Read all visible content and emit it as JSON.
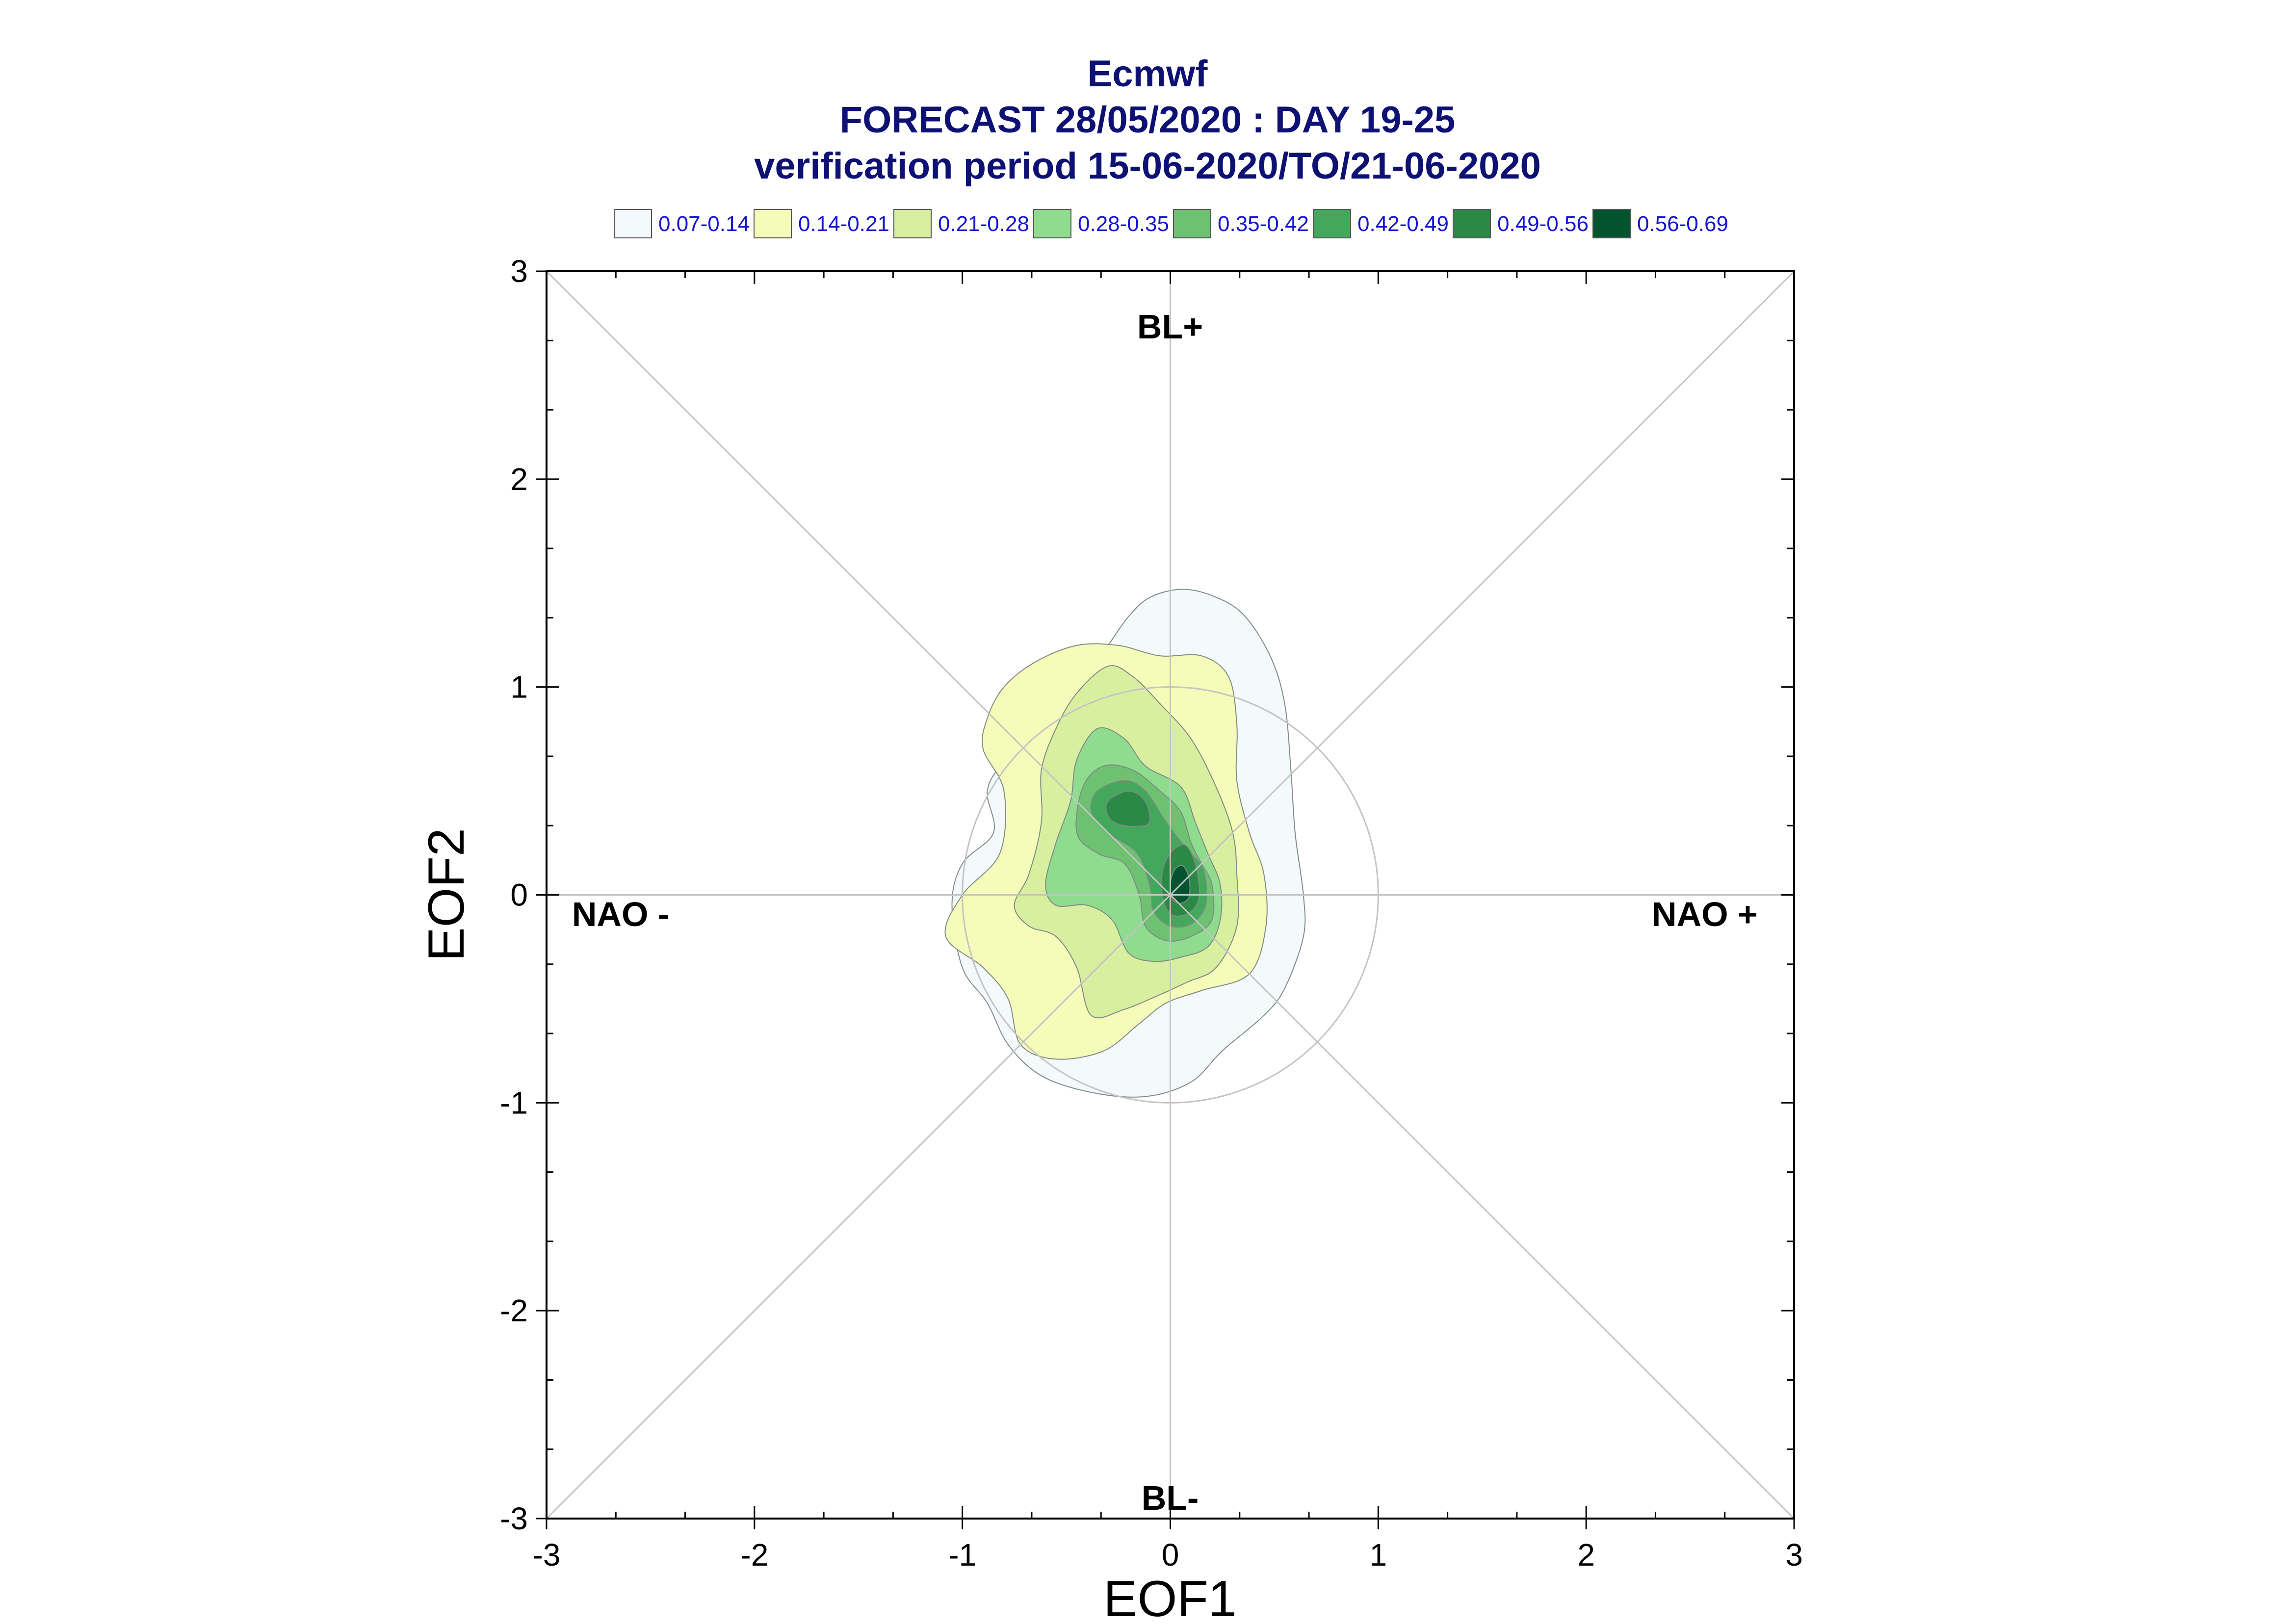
{
  "titles": {
    "line1": "Ecmwf",
    "line2": "FORECAST 28/05/2020 : DAY 19-25",
    "line3": "verification period 15-06-2020/TO/21-06-2020"
  },
  "legend": [
    {
      "label": "0.07-0.14",
      "color": "#f4f9fc"
    },
    {
      "label": "0.14-0.21",
      "color": "#f5fbb9"
    },
    {
      "label": "0.21-0.28",
      "color": "#d8efa0"
    },
    {
      "label": "0.28-0.35",
      "color": "#8fdc8e"
    },
    {
      "label": "0.35-0.42",
      "color": "#6ec171"
    },
    {
      "label": "0.42-0.49",
      "color": "#44a85c"
    },
    {
      "label": "0.49-0.56",
      "color": "#2a8a45"
    },
    {
      "label": "0.56-0.69",
      "color": "#02542f"
    }
  ],
  "chart_data": {
    "type": "contour",
    "xlabel": "EOF1",
    "ylabel": "EOF2",
    "xlim": [
      -3,
      3
    ],
    "ylim": [
      -3,
      3
    ],
    "xticks": [
      "-3",
      "-2",
      "-1",
      "0",
      "1",
      "2",
      "3"
    ],
    "yticks": [
      "3",
      "2",
      "1",
      "0",
      "-1",
      "-2",
      "-3"
    ],
    "reference_circle_radius": 1,
    "regime_labels": {
      "top": "BL+",
      "bottom": "BL-",
      "left": "NAO -",
      "right": "NAO +"
    },
    "contour_levels": [
      {
        "range": "0.07-0.14",
        "polygons": [
          [
            [
              -0.85,
              0.3
            ],
            [
              -0.88,
              0.5
            ],
            [
              -0.8,
              0.63
            ],
            [
              -0.62,
              0.72
            ],
            [
              -0.48,
              0.95
            ],
            [
              -0.3,
              1.2
            ],
            [
              -0.2,
              1.34
            ],
            [
              -0.1,
              1.43
            ],
            [
              0.05,
              1.47
            ],
            [
              0.2,
              1.44
            ],
            [
              0.35,
              1.35
            ],
            [
              0.48,
              1.15
            ],
            [
              0.55,
              0.92
            ],
            [
              0.58,
              0.6
            ],
            [
              0.6,
              0.3
            ],
            [
              0.64,
              0.0
            ],
            [
              0.64,
              -0.2
            ],
            [
              0.55,
              -0.45
            ],
            [
              0.45,
              -0.58
            ],
            [
              0.25,
              -0.75
            ],
            [
              0.1,
              -0.9
            ],
            [
              -0.12,
              -0.97
            ],
            [
              -0.38,
              -0.95
            ],
            [
              -0.62,
              -0.87
            ],
            [
              -0.78,
              -0.72
            ],
            [
              -0.88,
              -0.52
            ],
            [
              -1.0,
              -0.35
            ],
            [
              -1.05,
              -0.05
            ],
            [
              -1.0,
              0.15
            ]
          ]
        ]
      },
      {
        "range": "0.14-0.21",
        "polygons": [
          [
            [
              -0.88,
              0.85
            ],
            [
              -0.8,
              1.0
            ],
            [
              -0.65,
              1.12
            ],
            [
              -0.45,
              1.2
            ],
            [
              -0.25,
              1.2
            ],
            [
              -0.05,
              1.15
            ],
            [
              0.15,
              1.15
            ],
            [
              0.28,
              1.05
            ],
            [
              0.32,
              0.82
            ],
            [
              0.32,
              0.55
            ],
            [
              0.38,
              0.3
            ],
            [
              0.45,
              0.1
            ],
            [
              0.46,
              -0.15
            ],
            [
              0.38,
              -0.38
            ],
            [
              0.15,
              -0.46
            ],
            [
              -0.02,
              -0.52
            ],
            [
              -0.15,
              -0.62
            ],
            [
              -0.32,
              -0.75
            ],
            [
              -0.55,
              -0.79
            ],
            [
              -0.72,
              -0.72
            ],
            [
              -0.78,
              -0.5
            ],
            [
              -0.9,
              -0.35
            ],
            [
              -1.08,
              -0.2
            ],
            [
              -1.0,
              -0.0
            ],
            [
              -0.82,
              0.2
            ],
            [
              -0.8,
              0.5
            ],
            [
              -0.9,
              0.7
            ]
          ]
        ]
      },
      {
        "range": "0.21-0.28",
        "polygons": [
          [
            [
              -0.55,
              0.8
            ],
            [
              -0.45,
              0.97
            ],
            [
              -0.3,
              1.1
            ],
            [
              -0.18,
              1.05
            ],
            [
              -0.05,
              0.92
            ],
            [
              0.1,
              0.75
            ],
            [
              0.22,
              0.52
            ],
            [
              0.3,
              0.3
            ],
            [
              0.32,
              0.1
            ],
            [
              0.32,
              -0.15
            ],
            [
              0.22,
              -0.35
            ],
            [
              0.08,
              -0.42
            ],
            [
              -0.05,
              -0.48
            ],
            [
              -0.22,
              -0.55
            ],
            [
              -0.38,
              -0.58
            ],
            [
              -0.45,
              -0.35
            ],
            [
              -0.55,
              -0.2
            ],
            [
              -0.68,
              -0.15
            ],
            [
              -0.75,
              -0.05
            ],
            [
              -0.68,
              0.1
            ],
            [
              -0.62,
              0.35
            ],
            [
              -0.62,
              0.6
            ]
          ]
        ]
      },
      {
        "range": "0.28-0.35",
        "polygons": [
          [
            [
              -0.45,
              0.65
            ],
            [
              -0.35,
              0.8
            ],
            [
              -0.22,
              0.75
            ],
            [
              -0.12,
              0.62
            ],
            [
              0.05,
              0.52
            ],
            [
              0.12,
              0.35
            ],
            [
              0.18,
              0.2
            ],
            [
              0.24,
              0.05
            ],
            [
              0.24,
              -0.12
            ],
            [
              0.18,
              -0.25
            ],
            [
              0.05,
              -0.3
            ],
            [
              -0.08,
              -0.32
            ],
            [
              -0.2,
              -0.28
            ],
            [
              -0.28,
              -0.12
            ],
            [
              -0.4,
              -0.05
            ],
            [
              -0.55,
              -0.05
            ],
            [
              -0.6,
              0.05
            ],
            [
              -0.55,
              0.25
            ],
            [
              -0.48,
              0.45
            ]
          ]
        ]
      },
      {
        "range": "0.35-0.42",
        "polygons": [
          [
            [
              -0.42,
              0.52
            ],
            [
              -0.32,
              0.62
            ],
            [
              -0.18,
              0.6
            ],
            [
              -0.05,
              0.5
            ],
            [
              0.05,
              0.4
            ],
            [
              0.1,
              0.25
            ],
            [
              0.15,
              0.15
            ],
            [
              0.2,
              0.05
            ],
            [
              0.2,
              -0.12
            ],
            [
              0.1,
              -0.2
            ],
            [
              -0.02,
              -0.22
            ],
            [
              -0.12,
              -0.15
            ],
            [
              -0.15,
              0.0
            ],
            [
              -0.22,
              0.15
            ],
            [
              -0.35,
              0.2
            ],
            [
              -0.45,
              0.3
            ]
          ]
        ]
      },
      {
        "range": "0.42-0.49",
        "polygons": [
          [
            [
              -0.35,
              0.5
            ],
            [
              -0.22,
              0.55
            ],
            [
              -0.12,
              0.5
            ],
            [
              -0.02,
              0.35
            ],
            [
              0.08,
              0.22
            ],
            [
              0.16,
              0.12
            ],
            [
              0.17,
              -0.05
            ],
            [
              0.1,
              -0.14
            ],
            [
              -0.0,
              -0.15
            ],
            [
              -0.08,
              -0.08
            ],
            [
              -0.1,
              0.05
            ],
            [
              -0.16,
              0.2
            ],
            [
              -0.3,
              0.3
            ],
            [
              -0.38,
              0.4
            ]
          ]
        ]
      },
      {
        "range": "0.49-0.56",
        "polygons": [
          [
            [
              -0.3,
              0.45
            ],
            [
              -0.2,
              0.5
            ],
            [
              -0.12,
              0.45
            ],
            [
              -0.1,
              0.35
            ],
            [
              -0.16,
              0.33
            ],
            [
              -0.25,
              0.34
            ],
            [
              -0.3,
              0.38
            ]
          ],
          [
            [
              0.0,
              0.2
            ],
            [
              0.07,
              0.24
            ],
            [
              0.12,
              0.15
            ],
            [
              0.14,
              0.0
            ],
            [
              0.1,
              -0.08
            ],
            [
              0.02,
              -0.1
            ],
            [
              -0.03,
              -0.04
            ],
            [
              -0.04,
              0.1
            ]
          ]
        ]
      },
      {
        "range": "0.56-0.69",
        "polygons": [
          [
            [
              0.02,
              0.12
            ],
            [
              0.06,
              0.14
            ],
            [
              0.09,
              0.08
            ],
            [
              0.09,
              -0.01
            ],
            [
              0.05,
              -0.04
            ],
            [
              0.01,
              -0.02
            ],
            [
              0.0,
              0.05
            ]
          ]
        ]
      }
    ]
  }
}
